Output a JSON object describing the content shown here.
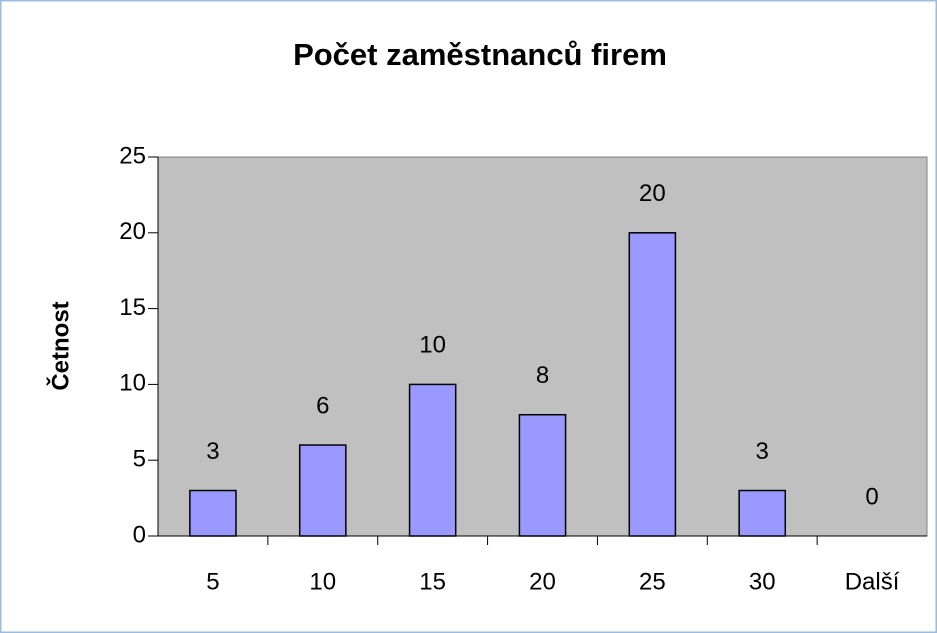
{
  "chart_data": {
    "type": "bar",
    "title": "Počet zaměstnanců firem",
    "y_label": "Četnost",
    "categories": [
      "5",
      "10",
      "15",
      "20",
      "25",
      "30",
      "Další"
    ],
    "values": [
      3,
      6,
      10,
      8,
      20,
      3,
      0
    ],
    "color": "#9999ff",
    "ylim": [
      0,
      25
    ],
    "yticks": [
      0,
      5,
      10,
      15,
      20,
      25
    ],
    "grid": false
  }
}
